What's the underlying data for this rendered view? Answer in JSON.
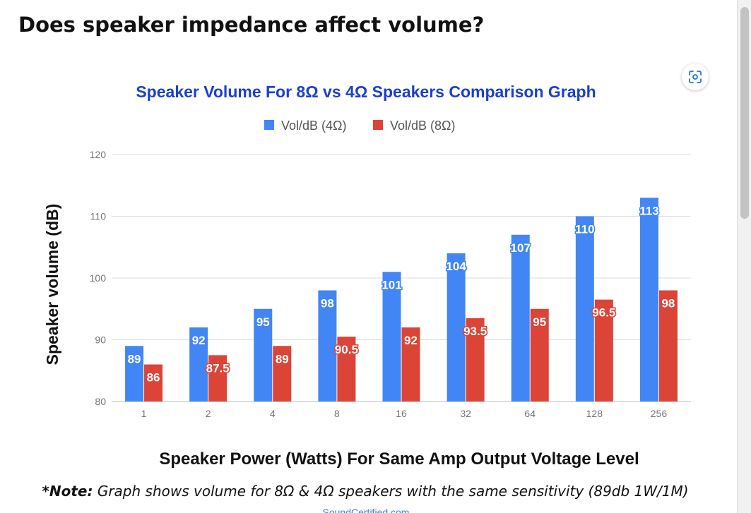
{
  "heading": "Does speaker impedance affect volume?",
  "lens_icon": "visual-search-icon",
  "colors": {
    "series_4ohm": "#4285f4",
    "series_8ohm": "#db4437",
    "title": "#1a3fd0",
    "grid": "#dddddd",
    "axis_text": "#757575"
  },
  "chart_data": {
    "type": "bar",
    "title": "Speaker Volume For 8Ω vs 4Ω Speakers Comparison Graph",
    "xlabel": "Speaker Power (Watts) For Same Amp Output Voltage Level",
    "ylabel": "Speaker volume (dB)",
    "categories": [
      "1",
      "2",
      "4",
      "8",
      "16",
      "32",
      "64",
      "128",
      "256"
    ],
    "series": [
      {
        "name": "Vol/dB (4Ω)",
        "values": [
          89,
          92,
          95,
          98,
          101,
          104,
          107,
          110,
          113
        ],
        "labels": [
          "89",
          "92",
          "95",
          "98",
          "101",
          "104",
          "107",
          "110",
          "113"
        ]
      },
      {
        "name": "Vol/dB (8Ω)",
        "values": [
          86,
          87.5,
          89,
          90.5,
          92,
          93.5,
          95,
          96.5,
          98
        ],
        "labels": [
          "86",
          "87.5",
          "89",
          "90.5",
          "92",
          "93.5",
          "95",
          "96.5",
          "98"
        ]
      }
    ],
    "ylim": [
      80,
      120
    ],
    "yticks": [
      "80",
      "90",
      "100",
      "110",
      "120"
    ],
    "grid": true,
    "legend": "top",
    "note_prefix": "*Note:",
    "note_text": " Graph shows volume for 8Ω & 4Ω speakers with the same sensitivity (89db 1W/1M)",
    "watermark": "SoundCertified.com"
  }
}
